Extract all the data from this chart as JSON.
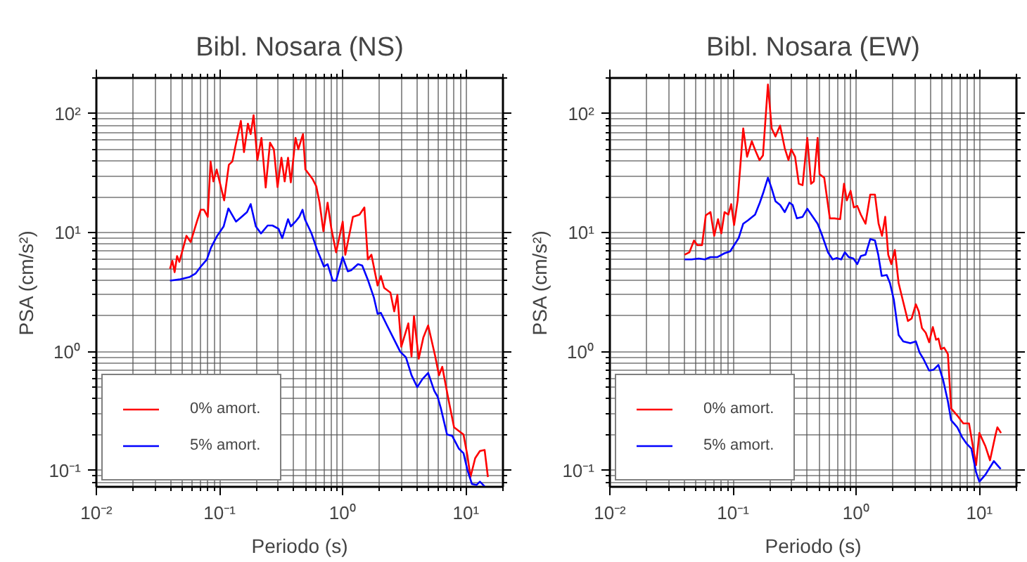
{
  "chart_data": [
    {
      "type": "line",
      "title": "Bibl. Nosara (NS)",
      "xlabel": "Periodo (s)",
      "ylabel": "PSA (cm/s²)",
      "log": "xy",
      "grid": true,
      "legend": "bottom left",
      "xlim": [
        0.01,
        20
      ],
      "ylim": [
        0.073,
        200
      ],
      "xticks": [
        {
          "value": 0.01,
          "label": "10⁻²"
        },
        {
          "value": 0.1,
          "label": "10⁻¹"
        },
        {
          "value": 1,
          "label": "10⁰"
        },
        {
          "value": 10,
          "label": "10¹"
        }
      ],
      "yticks": [
        {
          "value": 0.1,
          "label": "10⁻¹"
        },
        {
          "value": 1,
          "label": "10⁰"
        },
        {
          "value": 10,
          "label": "10¹"
        },
        {
          "value": 100,
          "label": "10²"
        }
      ],
      "series": [
        {
          "name": "0% amort.",
          "color": "#ff0000",
          "x": [
            0.0396,
            0.0414,
            0.0432,
            0.0452,
            0.0472,
            0.0539,
            0.0583,
            0.0655,
            0.0703,
            0.0748,
            0.0802,
            0.0846,
            0.0891,
            0.0948,
            0.109,
            0.119,
            0.127,
            0.136,
            0.149,
            0.158,
            0.17,
            0.179,
            0.189,
            0.203,
            0.219,
            0.237,
            0.257,
            0.276,
            0.296,
            0.318,
            0.338,
            0.36,
            0.379,
            0.414,
            0.436,
            0.476,
            0.498,
            0.569,
            0.61,
            0.649,
            0.697,
            0.754,
            0.809,
            0.884,
            1.0,
            1.05,
            1.21,
            1.37,
            1.5,
            1.6,
            1.71,
            1.92,
            2.04,
            2.17,
            2.44,
            2.62,
            2.78,
            2.99,
            3.41,
            3.62,
            3.79,
            4.14,
            4.52,
            4.94,
            5.64,
            6.05,
            6.43,
            7.21,
            8.02,
            8.77,
            9.57,
            10.3,
            10.9,
            11.9,
            13.0,
            14.2,
            15.1
          ],
          "values": [
            4.97,
            5.8,
            4.66,
            6.36,
            5.69,
            9.42,
            8.36,
            12.4,
            15.6,
            15.6,
            13.6,
            39.7,
            27.0,
            34.0,
            18.7,
            37.2,
            39.7,
            56.2,
            87.1,
            47.6,
            82.6,
            67.5,
            97.3,
            40.8,
            62.7,
            24.0,
            57.2,
            50.3,
            24.2,
            42.7,
            27.0,
            42.7,
            26.5,
            62.7,
            50.3,
            67.5,
            34.0,
            28.3,
            24.6,
            17.9,
            10.3,
            17.9,
            10.8,
            6.84,
            12.4,
            6.53,
            13.6,
            14.2,
            16.3,
            5.96,
            6.53,
            3.6,
            4.33,
            3.44,
            3.14,
            2.18,
            3.0,
            1.1,
            1.73,
            0.912,
            1.99,
            0.871,
            1.32,
            1.66,
            0.912,
            0.633,
            0.746,
            0.4,
            0.231,
            0.215,
            0.201,
            0.133,
            0.0883,
            0.127,
            0.146,
            0.149,
            0.0883
          ]
        },
        {
          "name": "5% amort.",
          "color": "#0000ff",
          "x": [
            0.0396,
            0.0481,
            0.0574,
            0.0638,
            0.0715,
            0.0789,
            0.0853,
            0.0957,
            0.108,
            0.118,
            0.136,
            0.151,
            0.167,
            0.179,
            0.197,
            0.217,
            0.246,
            0.269,
            0.301,
            0.323,
            0.36,
            0.379,
            0.414,
            0.444,
            0.472,
            0.493,
            0.558,
            0.621,
            0.667,
            0.703,
            0.754,
            0.831,
            0.884,
            1.0,
            1.1,
            1.17,
            1.33,
            1.44,
            1.61,
            1.79,
            1.92,
            2.04,
            2.29,
            2.62,
            2.93,
            3.26,
            3.62,
            4.03,
            4.44,
            4.94,
            5.54,
            5.89,
            6.27,
            7.03,
            7.74,
            8.77,
            9.57,
            10.3,
            11.2,
            12.2,
            13.0,
            14.2
          ],
          "values": [
            3.95,
            4.06,
            4.25,
            4.53,
            5.29,
            5.96,
            7.5,
            9.42,
            11.3,
            16.0,
            12.4,
            13.6,
            14.9,
            17.4,
            11.3,
            9.86,
            11.5,
            11.5,
            10.8,
            9.0,
            13.0,
            11.3,
            12.4,
            13.6,
            15.6,
            13.0,
            9.86,
            7.16,
            5.96,
            5.2,
            5.44,
            3.95,
            3.95,
            6.24,
            4.74,
            4.83,
            5.44,
            5.29,
            3.95,
            2.86,
            2.08,
            2.12,
            1.66,
            1.26,
            1.0,
            0.896,
            0.633,
            0.503,
            0.588,
            0.662,
            0.468,
            0.419,
            0.333,
            0.201,
            0.196,
            0.153,
            0.14,
            0.101,
            0.0771,
            0.0757,
            0.0807,
            0.0736
          ]
        }
      ]
    },
    {
      "type": "line",
      "title": "Bibl. Nosara (EW)",
      "xlabel": "Periodo (s)",
      "ylabel": "PSA (cm/s²)",
      "log": "xy",
      "grid": true,
      "legend": "bottom left",
      "xlim": [
        0.01,
        20
      ],
      "ylim": [
        0.073,
        200
      ],
      "xticks": [
        {
          "value": 0.01,
          "label": "10⁻²"
        },
        {
          "value": 0.1,
          "label": "10⁻¹"
        },
        {
          "value": 1,
          "label": "10⁰"
        },
        {
          "value": 10,
          "label": "10¹"
        }
      ],
      "yticks": [
        {
          "value": 0.1,
          "label": "10⁻¹"
        },
        {
          "value": 1,
          "label": "10⁰"
        },
        {
          "value": 10,
          "label": "10¹"
        },
        {
          "value": 100,
          "label": "10²"
        }
      ],
      "series": [
        {
          "name": "0% amort.",
          "color": "#ff0000",
          "x": [
            0.0404,
            0.0442,
            0.0482,
            0.0513,
            0.056,
            0.0601,
            0.0656,
            0.0703,
            0.0755,
            0.0803,
            0.0853,
            0.0916,
            0.0966,
            0.102,
            0.109,
            0.121,
            0.13,
            0.142,
            0.152,
            0.164,
            0.175,
            0.192,
            0.206,
            0.221,
            0.241,
            0.263,
            0.282,
            0.297,
            0.319,
            0.342,
            0.367,
            0.401,
            0.43,
            0.453,
            0.486,
            0.504,
            0.55,
            0.611,
            0.667,
            0.741,
            0.796,
            0.839,
            0.9,
            0.957,
            1.02,
            1.09,
            1.19,
            1.3,
            1.42,
            1.52,
            1.62,
            1.72,
            1.82,
            1.93,
            2.06,
            2.21,
            2.41,
            2.63,
            2.82,
            3.05,
            3.22,
            3.42,
            3.67,
            3.91,
            4.19,
            4.45,
            4.65,
            4.87,
            5.17,
            5.55,
            5.9,
            6.62,
            7.41,
            8.24,
            9.4,
            10.0,
            11.2,
            12.2,
            13.4,
            14.0,
            15.0
          ],
          "values": [
            6.53,
            6.84,
            8.6,
            7.85,
            7.85,
            14.0,
            14.9,
            9.42,
            13.0,
            9.86,
            14.9,
            14.2,
            17.4,
            11.6,
            18.7,
            75.3,
            43.5,
            58.8,
            49.0,
            40.8,
            44.7,
            176,
            75.3,
            64.4,
            79.6,
            51.3,
            40.8,
            50.3,
            43.5,
            25.8,
            25.1,
            62.7,
            25.8,
            27.0,
            62.7,
            31.0,
            29.0,
            13.2,
            13.2,
            13.0,
            25.8,
            18.7,
            22.5,
            16.3,
            16.8,
            14.2,
            11.9,
            20.9,
            20.9,
            11.9,
            9.42,
            13.6,
            6.53,
            5.44,
            7.16,
            3.77,
            2.61,
            1.81,
            1.9,
            2.5,
            2.18,
            1.58,
            1.44,
            1.2,
            1.61,
            1.26,
            1.29,
            1.05,
            1.08,
            0.955,
            0.333,
            0.29,
            0.249,
            0.249,
            0.111,
            0.207,
            0.16,
            0.122,
            0.192,
            0.231,
            0.207
          ]
        },
        {
          "name": "5% amort.",
          "color": "#0000ff",
          "x": [
            0.0404,
            0.0461,
            0.0526,
            0.059,
            0.0656,
            0.0748,
            0.0853,
            0.0949,
            0.102,
            0.111,
            0.121,
            0.132,
            0.151,
            0.165,
            0.177,
            0.192,
            0.206,
            0.221,
            0.241,
            0.263,
            0.287,
            0.305,
            0.33,
            0.367,
            0.401,
            0.445,
            0.486,
            0.522,
            0.59,
            0.644,
            0.692,
            0.755,
            0.809,
            0.869,
            0.949,
            1.02,
            1.09,
            1.19,
            1.3,
            1.42,
            1.51,
            1.61,
            1.77,
            1.88,
            2.02,
            2.21,
            2.41,
            2.75,
            3.05,
            3.27,
            3.51,
            3.91,
            4.26,
            4.65,
            5.08,
            5.55,
            5.9,
            6.62,
            7.22,
            7.89,
            8.61,
            9.4,
            10.0,
            11.2,
            13.1,
            14.9
          ],
          "values": [
            5.96,
            5.96,
            6.07,
            5.96,
            6.24,
            6.24,
            6.72,
            6.97,
            7.85,
            9.0,
            11.9,
            12.7,
            14.2,
            17.9,
            22.1,
            29.0,
            23.5,
            18.4,
            17.1,
            14.9,
            17.9,
            17.1,
            13.2,
            13.6,
            15.9,
            13.6,
            11.9,
            9.86,
            6.84,
            5.96,
            6.12,
            5.96,
            6.84,
            6.24,
            6.07,
            5.44,
            6.36,
            6.53,
            8.84,
            8.6,
            6.53,
            4.33,
            4.41,
            3.77,
            2.74,
            1.38,
            1.22,
            1.18,
            1.22,
            0.982,
            0.871,
            0.693,
            0.706,
            0.774,
            0.577,
            0.382,
            0.265,
            0.231,
            0.192,
            0.168,
            0.153,
            0.0969,
            0.0807,
            0.0925,
            0.12,
            0.103
          ]
        }
      ]
    }
  ]
}
